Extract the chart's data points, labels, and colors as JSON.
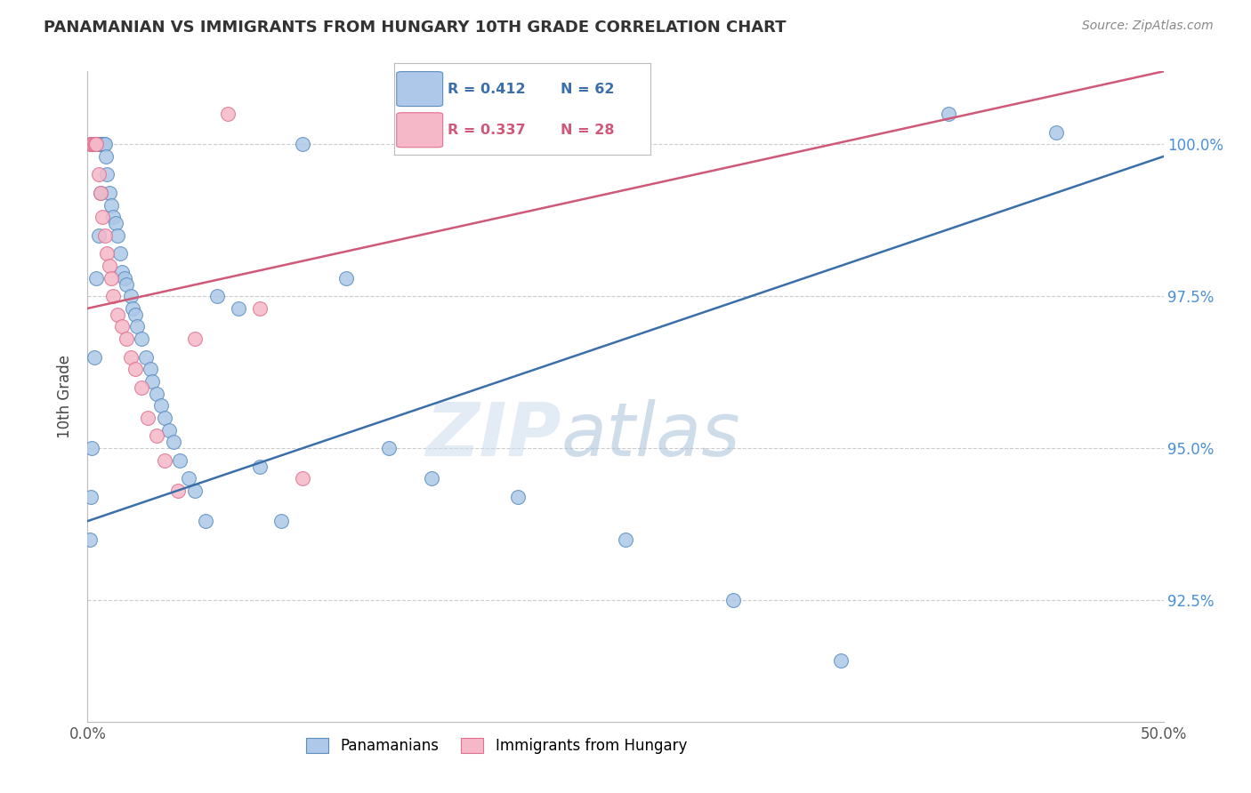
{
  "title": "PANAMANIAN VS IMMIGRANTS FROM HUNGARY 10TH GRADE CORRELATION CHART",
  "source": "Source: ZipAtlas.com",
  "ylabel": "10th Grade",
  "y_tick_values": [
    92.5,
    95.0,
    97.5,
    100.0
  ],
  "y_tick_labels": [
    "92.5%",
    "95.0%",
    "97.5%",
    "100.0%"
  ],
  "xlim": [
    0.0,
    50.0
  ],
  "ylim": [
    90.5,
    101.2
  ],
  "legend_R_blue": "R = 0.412",
  "legend_N_blue": "N = 62",
  "legend_R_pink": "R = 0.337",
  "legend_N_pink": "N = 28",
  "blue_face_color": "#adc8e8",
  "pink_face_color": "#f5b8c8",
  "blue_edge_color": "#5a8fc0",
  "pink_edge_color": "#e07090",
  "blue_line_color": "#3a6faa",
  "pink_line_color": "#d05878",
  "blue_line_x0": 0.0,
  "blue_line_x1": 50.0,
  "blue_line_y0": 93.8,
  "blue_line_y1": 99.8,
  "pink_line_x0": 0.0,
  "pink_line_x1": 50.0,
  "pink_line_y0": 97.3,
  "pink_line_y1": 101.2,
  "watermark_zip": "ZIP",
  "watermark_atlas": "atlas",
  "watermark_zip_color": "#c8d8ee",
  "watermark_atlas_color": "#a0b8d8",
  "blue_x": [
    0.15,
    0.2,
    0.25,
    0.3,
    0.35,
    0.4,
    0.45,
    0.5,
    0.55,
    0.6,
    0.7,
    0.75,
    0.8,
    0.85,
    0.9,
    1.0,
    1.1,
    1.2,
    1.3,
    1.4,
    1.5,
    1.6,
    1.7,
    1.8,
    2.0,
    2.1,
    2.2,
    2.3,
    2.5,
    2.7,
    2.9,
    3.0,
    3.2,
    3.4,
    3.6,
    3.8,
    4.0,
    4.3,
    4.7,
    5.0,
    5.5,
    6.0,
    7.0,
    8.0,
    9.0,
    10.0,
    12.0,
    14.0,
    16.0,
    20.0,
    25.0,
    30.0,
    35.0,
    40.0,
    45.0,
    0.1,
    0.15,
    0.2,
    0.3,
    0.4,
    0.5,
    0.6
  ],
  "blue_y": [
    100.0,
    100.0,
    100.0,
    100.0,
    100.0,
    100.0,
    100.0,
    100.0,
    100.0,
    100.0,
    100.0,
    100.0,
    100.0,
    99.8,
    99.5,
    99.2,
    99.0,
    98.8,
    98.7,
    98.5,
    98.2,
    97.9,
    97.8,
    97.7,
    97.5,
    97.3,
    97.2,
    97.0,
    96.8,
    96.5,
    96.3,
    96.1,
    95.9,
    95.7,
    95.5,
    95.3,
    95.1,
    94.8,
    94.5,
    94.3,
    93.8,
    97.5,
    97.3,
    94.7,
    93.8,
    100.0,
    97.8,
    95.0,
    94.5,
    94.2,
    93.5,
    92.5,
    91.5,
    100.5,
    100.2,
    93.5,
    94.2,
    95.0,
    96.5,
    97.8,
    98.5,
    99.2
  ],
  "pink_x": [
    0.15,
    0.2,
    0.25,
    0.3,
    0.35,
    0.4,
    0.5,
    0.6,
    0.7,
    0.8,
    0.9,
    1.0,
    1.1,
    1.2,
    1.4,
    1.6,
    1.8,
    2.0,
    2.2,
    2.5,
    2.8,
    3.2,
    3.6,
    4.2,
    5.0,
    6.5,
    8.0,
    10.0
  ],
  "pink_y": [
    100.0,
    100.0,
    100.0,
    100.0,
    100.0,
    100.0,
    99.5,
    99.2,
    98.8,
    98.5,
    98.2,
    98.0,
    97.8,
    97.5,
    97.2,
    97.0,
    96.8,
    96.5,
    96.3,
    96.0,
    95.5,
    95.2,
    94.8,
    94.3,
    96.8,
    100.5,
    97.3,
    94.5
  ]
}
